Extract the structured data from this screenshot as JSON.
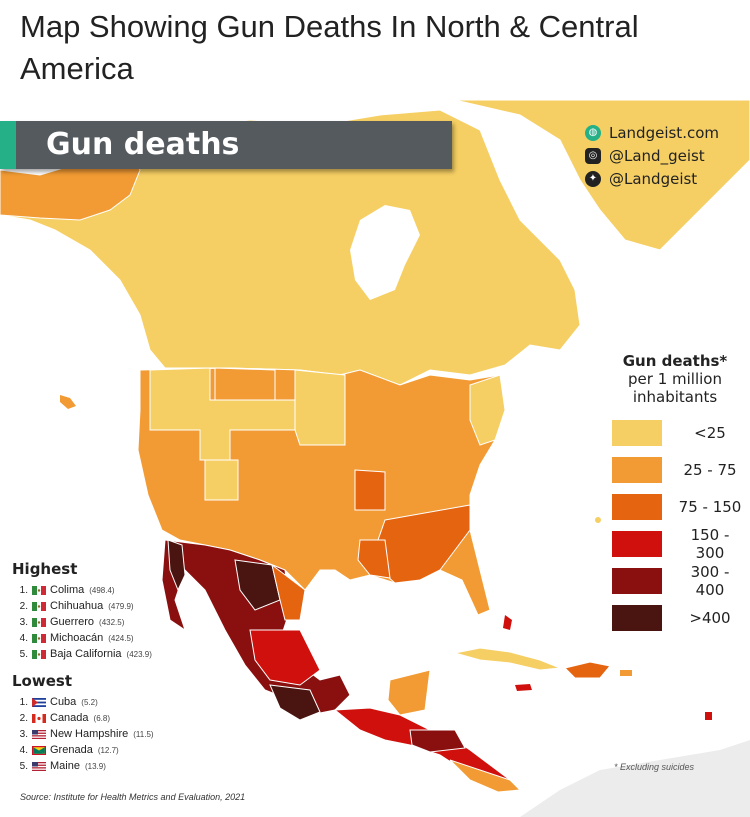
{
  "title": "Map Showing Gun Deaths In North & Central America",
  "banner": {
    "label": "Gun deaths"
  },
  "social": [
    {
      "icon": "globe-icon",
      "label": "Landgeist.com",
      "color": "#25b087"
    },
    {
      "icon": "instagram-icon",
      "label": "@Land_geist",
      "color": "#222222"
    },
    {
      "icon": "twitter-icon",
      "label": "@Landgeist",
      "color": "#222222"
    }
  ],
  "legend": {
    "title_bold": "Gun deaths*",
    "title_rest": "per 1 million inhabitants",
    "items": [
      {
        "label": "<25",
        "color": "#f5cf63"
      },
      {
        "label": "25  -  75",
        "color": "#f29b34"
      },
      {
        "label": "75  - 150",
        "color": "#e56410"
      },
      {
        "label": "150 - 300",
        "color": "#d0100c"
      },
      {
        "label": "300 - 400",
        "color": "#8a1010"
      },
      {
        "label": ">400",
        "color": "#4a1410"
      }
    ]
  },
  "highest": {
    "heading": "Highest",
    "items": [
      {
        "rank": "1.",
        "flag": "mexico",
        "name": "Colima",
        "value": "(498.4)"
      },
      {
        "rank": "2.",
        "flag": "mexico",
        "name": "Chihuahua",
        "value": "(479.9)"
      },
      {
        "rank": "3.",
        "flag": "mexico",
        "name": "Guerrero",
        "value": "(432.5)"
      },
      {
        "rank": "4.",
        "flag": "mexico",
        "name": "Michoacán",
        "value": "(424.5)"
      },
      {
        "rank": "5.",
        "flag": "mexico",
        "name": "Baja California",
        "value": "(423.9)"
      }
    ]
  },
  "lowest": {
    "heading": "Lowest",
    "items": [
      {
        "rank": "1.",
        "flag": "cuba",
        "name": "Cuba",
        "value": "(5.2)"
      },
      {
        "rank": "2.",
        "flag": "canada",
        "name": "Canada",
        "value": "(6.8)"
      },
      {
        "rank": "3.",
        "flag": "usa",
        "name": "New Hampshire",
        "value": "(11.5)"
      },
      {
        "rank": "4.",
        "flag": "grenada",
        "name": "Grenada",
        "value": "(12.7)"
      },
      {
        "rank": "5.",
        "flag": "usa",
        "name": "Maine",
        "value": "(13.9)"
      }
    ]
  },
  "footnote": "* Excluding suicides",
  "source": "Source: Institute for Health Metrics and Evaluation, 2021",
  "colors": {
    "sea": "#ffffff",
    "land_lowest": "#f5cf63",
    "banner_bg": "#555a5e",
    "banner_accent": "#25b087"
  }
}
